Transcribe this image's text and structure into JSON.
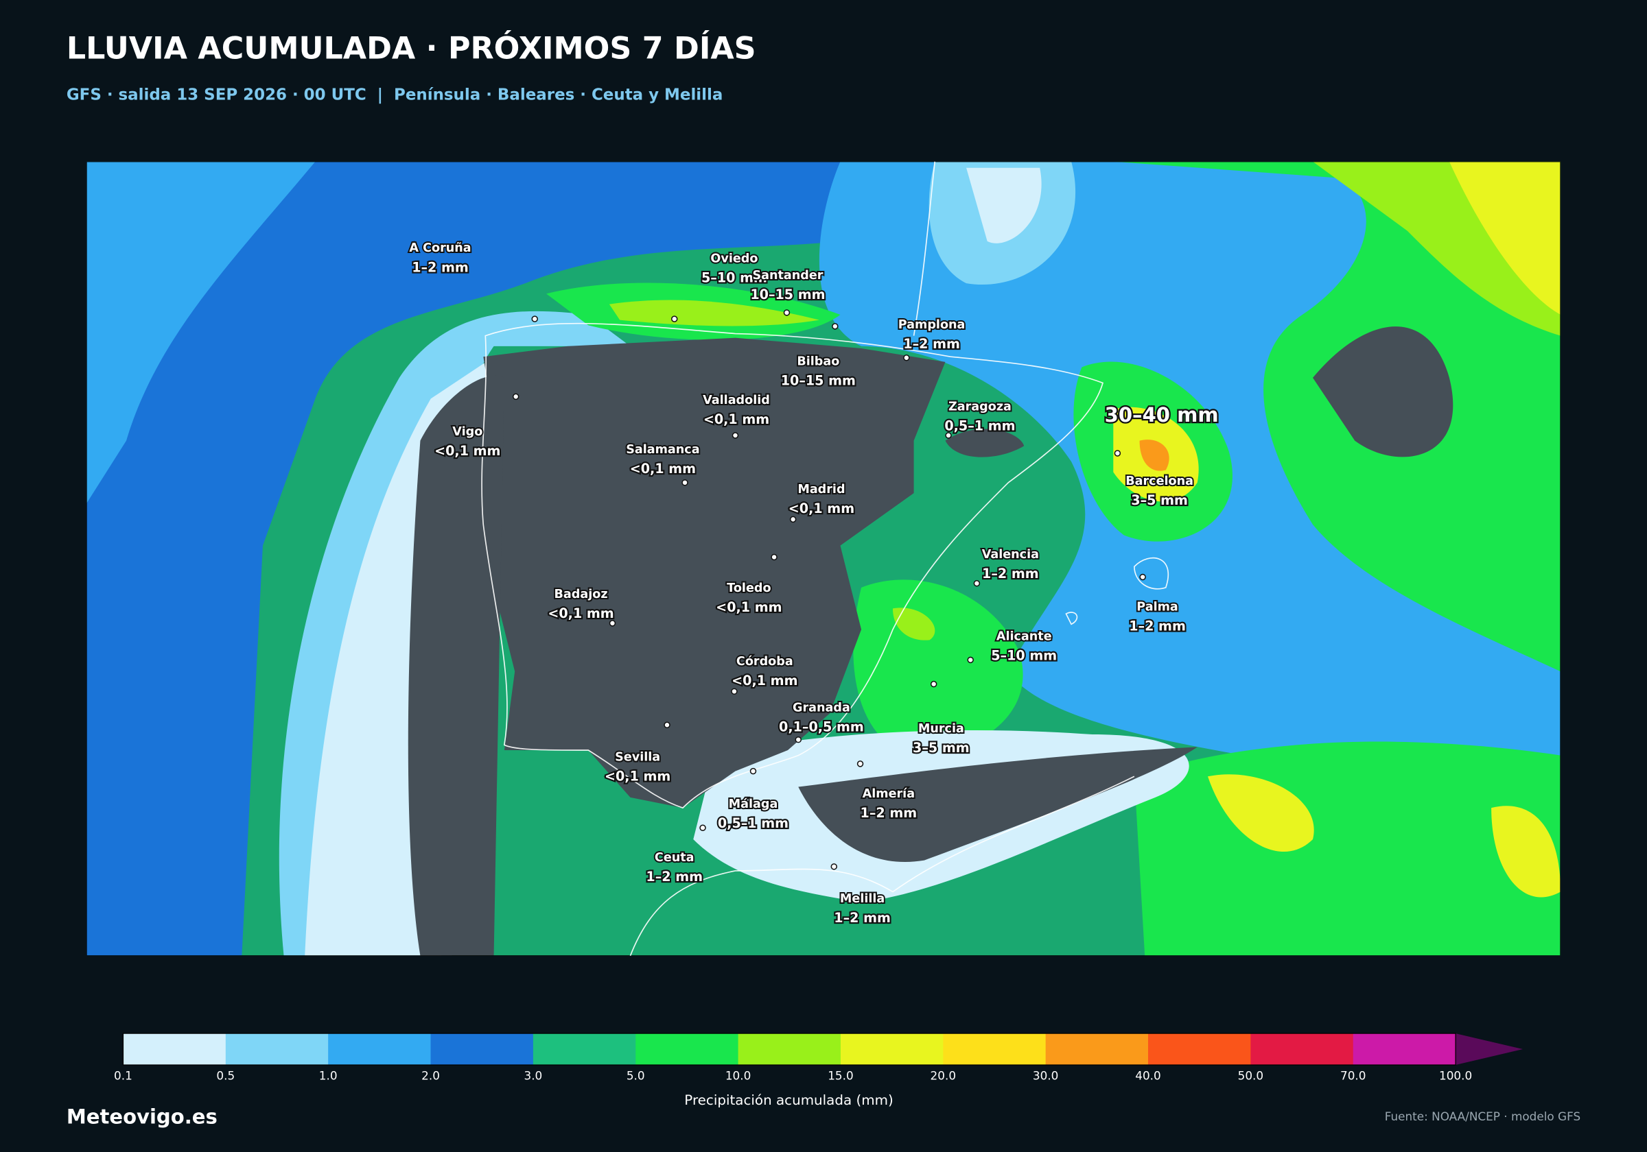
{
  "header": {
    "title": "LLUVIA ACUMULADA · PRÓXIMOS 7 DÍAS",
    "subtitle": "GFS · salida 13 SEP 2026 · 00 UTC  |  Península · Baleares · Ceuta y Melilla"
  },
  "map": {
    "highlight": "30–40 mm",
    "cities": [
      {
        "name": "A Coruña",
        "value": "1–2 mm"
      },
      {
        "name": "Oviedo",
        "value": "5–10 mm"
      },
      {
        "name": "Santander",
        "value": "10–15 mm"
      },
      {
        "name": "Pamplona",
        "value": "1–2 mm"
      },
      {
        "name": "Bilbao",
        "value": "10–15 mm"
      },
      {
        "name": "Valladolid",
        "value": "<0,1 mm"
      },
      {
        "name": "Zaragoza",
        "value": "0,5–1 mm"
      },
      {
        "name": "Vigo",
        "value": "<0,1 mm"
      },
      {
        "name": "Salamanca",
        "value": "<0,1 mm"
      },
      {
        "name": "Madrid",
        "value": "<0,1 mm"
      },
      {
        "name": "Barcelona",
        "value": "3–5 mm"
      },
      {
        "name": "Valencia",
        "value": "1–2 mm"
      },
      {
        "name": "Toledo",
        "value": "<0,1 mm"
      },
      {
        "name": "Badajoz",
        "value": "<0,1 mm"
      },
      {
        "name": "Palma",
        "value": "1–2 mm"
      },
      {
        "name": "Alicante",
        "value": "5–10 mm"
      },
      {
        "name": "Córdoba",
        "value": "<0,1 mm"
      },
      {
        "name": "Granada",
        "value": "0,1–0,5 mm"
      },
      {
        "name": "Murcia",
        "value": "3–5 mm"
      },
      {
        "name": "Sevilla",
        "value": "<0,1 mm"
      },
      {
        "name": "Almería",
        "value": "1–2 mm"
      },
      {
        "name": "Málaga",
        "value": "0,5–1 mm"
      },
      {
        "name": "Ceuta",
        "value": "1–2 mm"
      },
      {
        "name": "Melilla",
        "value": "1–2 mm"
      }
    ]
  },
  "colorbar": {
    "label": "Precipitación acumulada (mm)",
    "ticks": [
      "0.1",
      "0.5",
      "1.0",
      "2.0",
      "3.0",
      "5.0",
      "10.0",
      "15.0",
      "20.0",
      "30.0",
      "40.0",
      "50.0",
      "70.0",
      "100.0"
    ],
    "colors": [
      "#d4f0fc",
      "#7fd6f7",
      "#33aaf2",
      "#1a74d8",
      "#1dc07e",
      "#19e64d",
      "#99f01a",
      "#e8f51f",
      "#fde01a",
      "#fa9a1a",
      "#fa551a",
      "#e31a44",
      "#cc1aa8"
    ],
    "extend_color": "#5a0a5a"
  },
  "footer": {
    "brand": "Meteovigo.es",
    "source": "Fuente: NOAA/NCEP · modelo GFS"
  }
}
